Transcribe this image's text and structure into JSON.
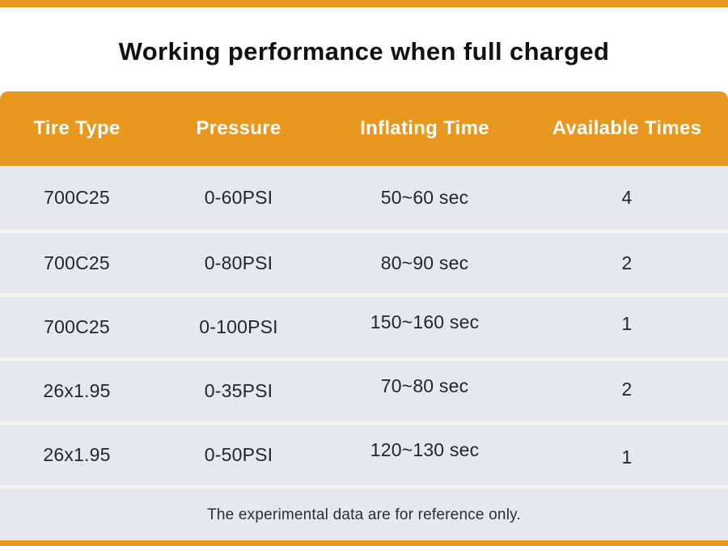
{
  "chart_data": {
    "type": "table",
    "title": "Working performance when full charged",
    "columns": [
      "Tire Type",
      "Pressure",
      "Inflating Time",
      "Available Times"
    ],
    "rows": [
      [
        "700C25",
        "0-60PSI",
        "50~60 sec",
        "4"
      ],
      [
        "700C25",
        "0-80PSI",
        "80~90 sec",
        "2"
      ],
      [
        "700C25",
        "0-100PSI",
        "150~160 sec",
        "1"
      ],
      [
        "26x1.95",
        "0-35PSI",
        "70~80 sec",
        "2"
      ],
      [
        "26x1.95",
        "0-50PSI",
        "120~130 sec",
        "1"
      ]
    ],
    "footnote": "The experimental data are for reference only.",
    "layout": "header band top, 5 data rows, footnote row, accent strips at page top and bottom"
  },
  "colors": {
    "accent_orange": "#E8981F",
    "row_background": "#E5E8EF",
    "separator": "#F3F6F1",
    "header_text": "#FFFFFF",
    "body_text": "#23262B",
    "title_text": "#111111"
  }
}
